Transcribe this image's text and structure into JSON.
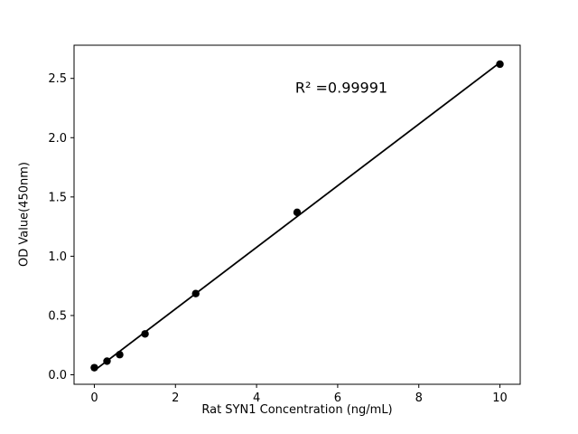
{
  "chart_data": {
    "type": "scatter",
    "title": "",
    "xlabel": "Rat SYN1 Concentration (ng/mL)",
    "ylabel": "OD Value(450nm)",
    "annotation": "R² =0.99991",
    "x": [
      0,
      0.3125,
      0.625,
      1.25,
      2.5,
      5,
      10
    ],
    "y": [
      0.06,
      0.115,
      0.17,
      0.345,
      0.685,
      1.37,
      2.62
    ],
    "fit_line": true,
    "xlim": [
      -0.5,
      10.5
    ],
    "ylim": [
      -0.08,
      2.78
    ],
    "xticks": [
      "0",
      "2",
      "4",
      "6",
      "8",
      "10"
    ],
    "yticks": [
      "0.0",
      "0.5",
      "1.0",
      "1.5",
      "2.0",
      "2.5"
    ],
    "marker_color": "#000000",
    "line_color": "#000000",
    "background_color": "#ffffff",
    "grid": false,
    "legend": "none"
  }
}
